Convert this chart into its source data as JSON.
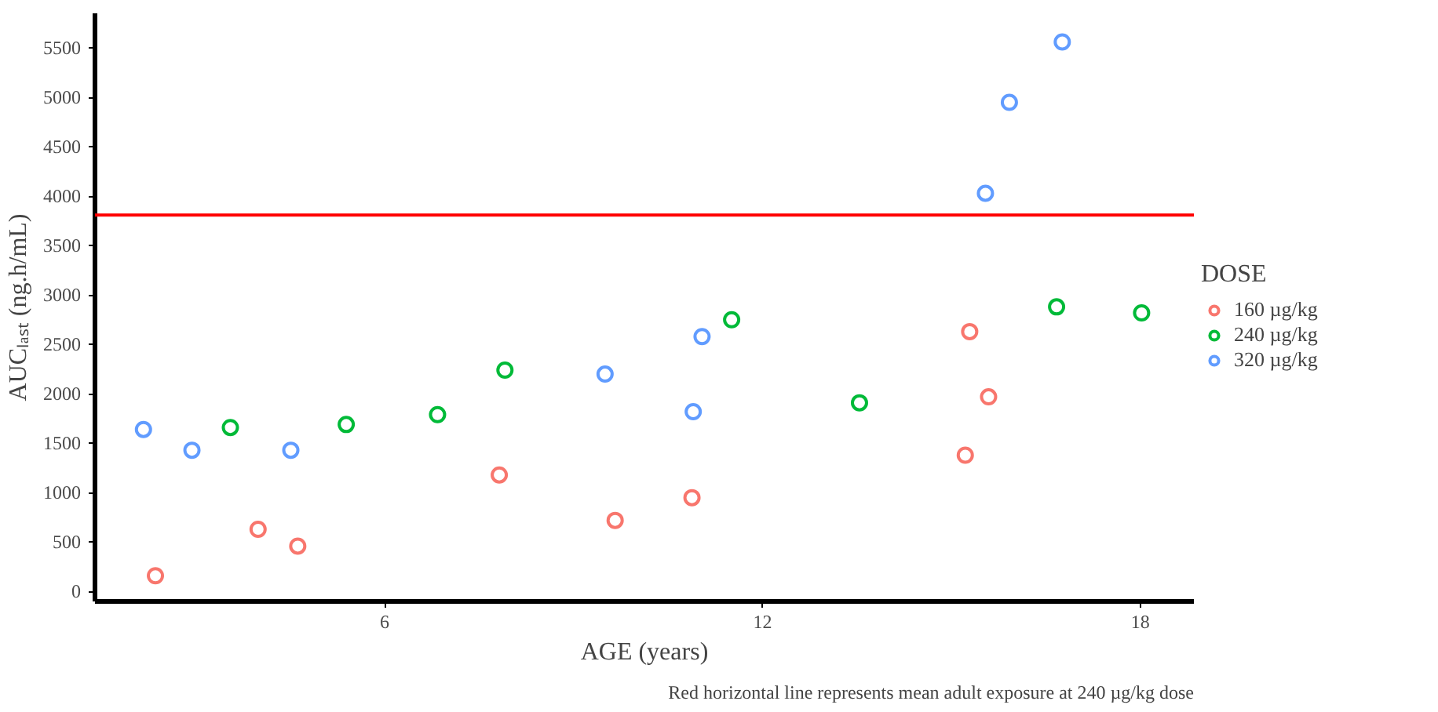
{
  "chart_data": {
    "type": "scatter",
    "xlabel": "AGE (years)",
    "ylabel": "AUCₗₐₛₜ (ng.h/mL)",
    "legend_title": "DOSE",
    "legend": "right",
    "marker": "circle",
    "grid": false,
    "xlim": [
      1.4,
      18.85
    ],
    "ylim": [
      -100,
      5850
    ],
    "xticks": [
      6,
      12,
      18
    ],
    "yticks": [
      0,
      500,
      1000,
      1500,
      2000,
      2500,
      3000,
      3500,
      4000,
      4500,
      5000,
      5500
    ],
    "series": [
      {
        "name": "160 µg/kg",
        "color": "#f8766d",
        "x": [
          2.36,
          3.99,
          4.62,
          7.82,
          9.66,
          10.88,
          15.22,
          15.29,
          15.59
        ],
        "values": [
          160,
          630,
          460,
          1180,
          720,
          950,
          1380,
          2630,
          1970
        ]
      },
      {
        "name": "240 µg/kg",
        "color": "#00ba38",
        "x": [
          3.55,
          5.39,
          6.84,
          7.91,
          11.51,
          13.54,
          16.67,
          18.02
        ],
        "values": [
          1660,
          1690,
          1790,
          2240,
          2750,
          1910,
          2880,
          2820
        ]
      },
      {
        "name": "320 µg/kg",
        "color": "#619cff",
        "x": [
          2.17,
          2.94,
          4.51,
          9.5,
          10.9,
          11.04,
          15.54,
          15.92,
          16.76
        ],
        "values": [
          1640,
          1430,
          1430,
          2200,
          1820,
          2580,
          4030,
          4950,
          5560
        ]
      }
    ],
    "ref_lines": [
      {
        "axis": "y",
        "value": 3810,
        "color": "#ff0000"
      }
    ],
    "annotations": [
      "Red horizontal line represents mean adult exposure at 240 µg/kg dose"
    ]
  }
}
